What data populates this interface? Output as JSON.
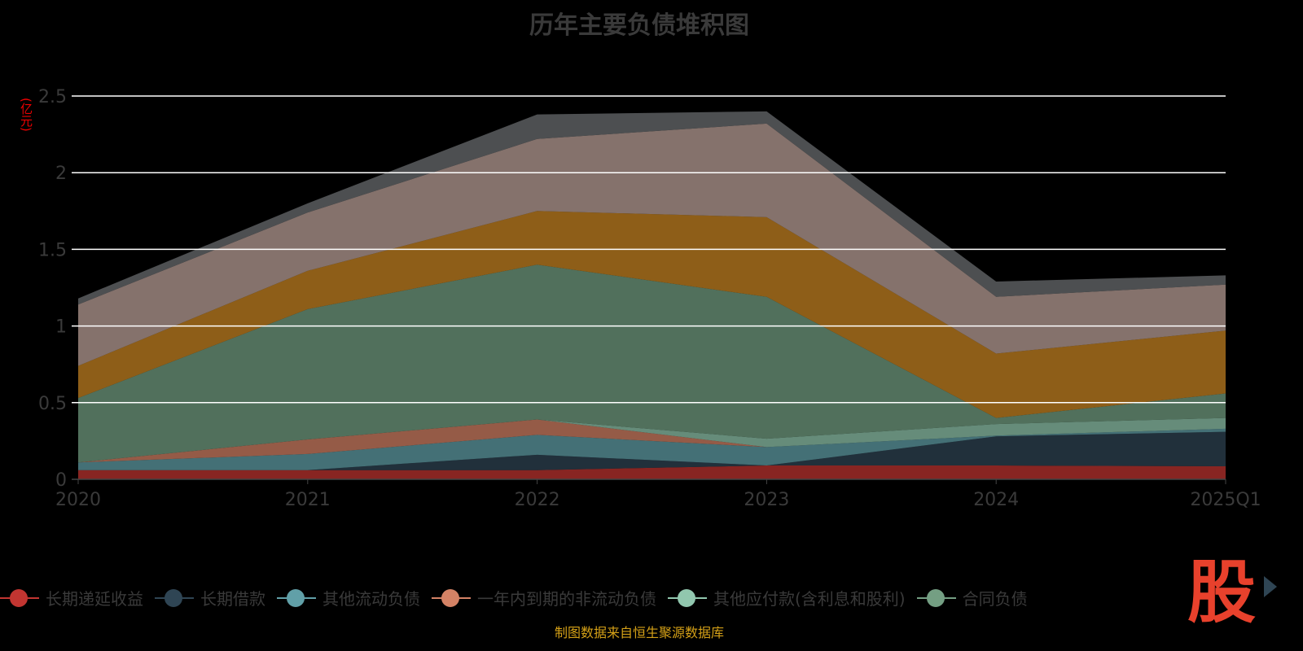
{
  "chart_data": {
    "type": "area",
    "stacked": true,
    "title": "历年主要负债堆积图",
    "ylabel": "(亿元)",
    "xlabel": "",
    "ylim": [
      0,
      2.5
    ],
    "yticks": [
      "0",
      "0.5",
      "1",
      "1.5",
      "2",
      "2.5"
    ],
    "categories": [
      "2020",
      "2021",
      "2022",
      "2023",
      "2024",
      "2025Q1"
    ],
    "grid": true,
    "legend_position": "bottom",
    "series": [
      {
        "name": "长期递延收益",
        "color": "#c23531",
        "values": [
          0.06,
          0.06,
          0.06,
          0.09,
          0.09,
          0.085
        ]
      },
      {
        "name": "长期借款",
        "color": "#2f4554",
        "values": [
          0.0,
          0.0,
          0.1,
          0.0,
          0.19,
          0.225
        ]
      },
      {
        "name": "其他流动负债",
        "color": "#61a0a8",
        "values": [
          0.05,
          0.105,
          0.13,
          0.12,
          0.005,
          0.02
        ]
      },
      {
        "name": "一年内到期的非流动负债",
        "color": "#d48265",
        "values": [
          0.0,
          0.095,
          0.1,
          0.0,
          0.0,
          0.0
        ]
      },
      {
        "name": "其他应付款(含利息和股利)",
        "color": "#91c7ae",
        "values": [
          0.0,
          0.0,
          0.0,
          0.055,
          0.075,
          0.07
        ]
      },
      {
        "name": "合同负债",
        "color": "#749f83",
        "values": [
          0.42,
          0.85,
          1.01,
          0.925,
          0.04,
          0.16
        ]
      },
      {
        "name": "",
        "color": "#ca8622",
        "values": [
          0.21,
          0.25,
          0.35,
          0.52,
          0.42,
          0.41
        ]
      },
      {
        "name": "",
        "color": "#bda29a",
        "values": [
          0.4,
          0.38,
          0.47,
          0.61,
          0.37,
          0.3
        ]
      },
      {
        "name": "",
        "color": "#6e7074",
        "values": [
          0.04,
          0.06,
          0.16,
          0.08,
          0.1,
          0.06
        ]
      }
    ]
  },
  "logo_text": "股",
  "source": "制图数据来自恒生聚源数据库"
}
